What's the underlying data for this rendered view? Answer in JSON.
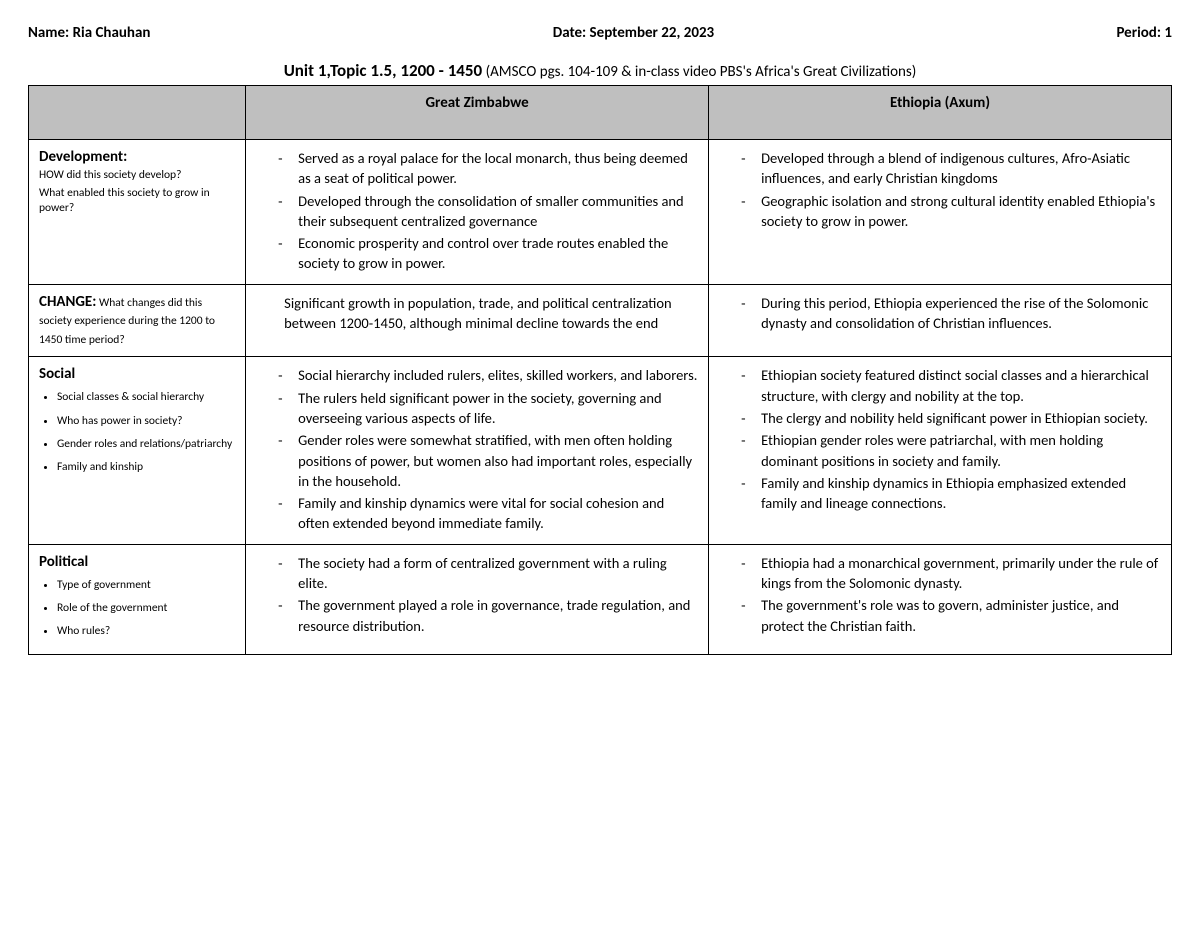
{
  "header": {
    "name_label": "Name: Ria Chauhan",
    "date_label": "Date: September 22, 2023",
    "period_label": "Period: 1"
  },
  "title": {
    "bold": "Unit 1,Topic 1.5, 1200 - 1450",
    "rest": " (AMSCO pgs. 104-109 & in-class video PBS's Africa's Great Civilizations)"
  },
  "columns": {
    "col1": "",
    "col2": "Great Zimbabwe",
    "col3": "Ethiopia (Axum)"
  },
  "rows": {
    "development": {
      "label_strong": "Development:",
      "label_sub1": "HOW did this society develop?",
      "label_sub2": "What enabled this society to grow in power?",
      "gz": [
        "Served as a royal palace for the local monarch, thus being deemed as a seat of political power.",
        "Developed through the consolidation of smaller communities and their subsequent centralized governance",
        "Economic prosperity and control over trade routes enabled the society to grow in power."
      ],
      "eth": [
        "Developed through a blend of indigenous cultures, Afro-Asiatic influences, and early Christian kingdoms",
        "Geographic isolation and strong cultural identity enabled Ethiopia's society to grow in power."
      ]
    },
    "change": {
      "label_strong": "CHANGE:",
      "label_sub": " What changes did this society experience during the 1200 to 1450 time period?",
      "gz_text": "Significant growth in population, trade, and political centralization between 1200-1450, although minimal decline towards the end",
      "eth": [
        "During this period, Ethiopia experienced the rise of the Solomonic dynasty and consolidation of Christian influences."
      ]
    },
    "social": {
      "label_strong": "Social",
      "bullets": [
        "Social classes & social hierarchy",
        "Who has power in society?",
        "Gender roles and relations/patriarchy",
        "Family and kinship"
      ],
      "gz": [
        "Social hierarchy included rulers, elites, skilled workers, and laborers.",
        "The rulers held significant power in the society, governing and overseeing various aspects of life.",
        "Gender roles were somewhat stratified, with men often holding positions of power, but women also had important roles, especially in the household.",
        "Family and kinship dynamics were vital for social cohesion and often extended beyond immediate family."
      ],
      "eth": [
        "Ethiopian society featured distinct social classes and a hierarchical structure, with clergy and nobility at the top.",
        "The clergy and nobility held significant power in Ethiopian society.",
        "Ethiopian gender roles were patriarchal, with men holding dominant positions in society and family.",
        "Family and kinship dynamics in Ethiopia emphasized extended family and lineage connections."
      ]
    },
    "political": {
      "label_strong": "Political",
      "bullets": [
        "Type of government",
        "Role of the government",
        "Who rules?"
      ],
      "gz": [
        "The society had a form of centralized government with a ruling elite.",
        "The government played a role in governance, trade regulation, and resource distribution."
      ],
      "eth": [
        "Ethiopia had a monarchical government, primarily under the rule of kings from the Solomonic dynasty.",
        "The government's role was to govern, administer justice, and protect the Christian faith."
      ]
    }
  }
}
